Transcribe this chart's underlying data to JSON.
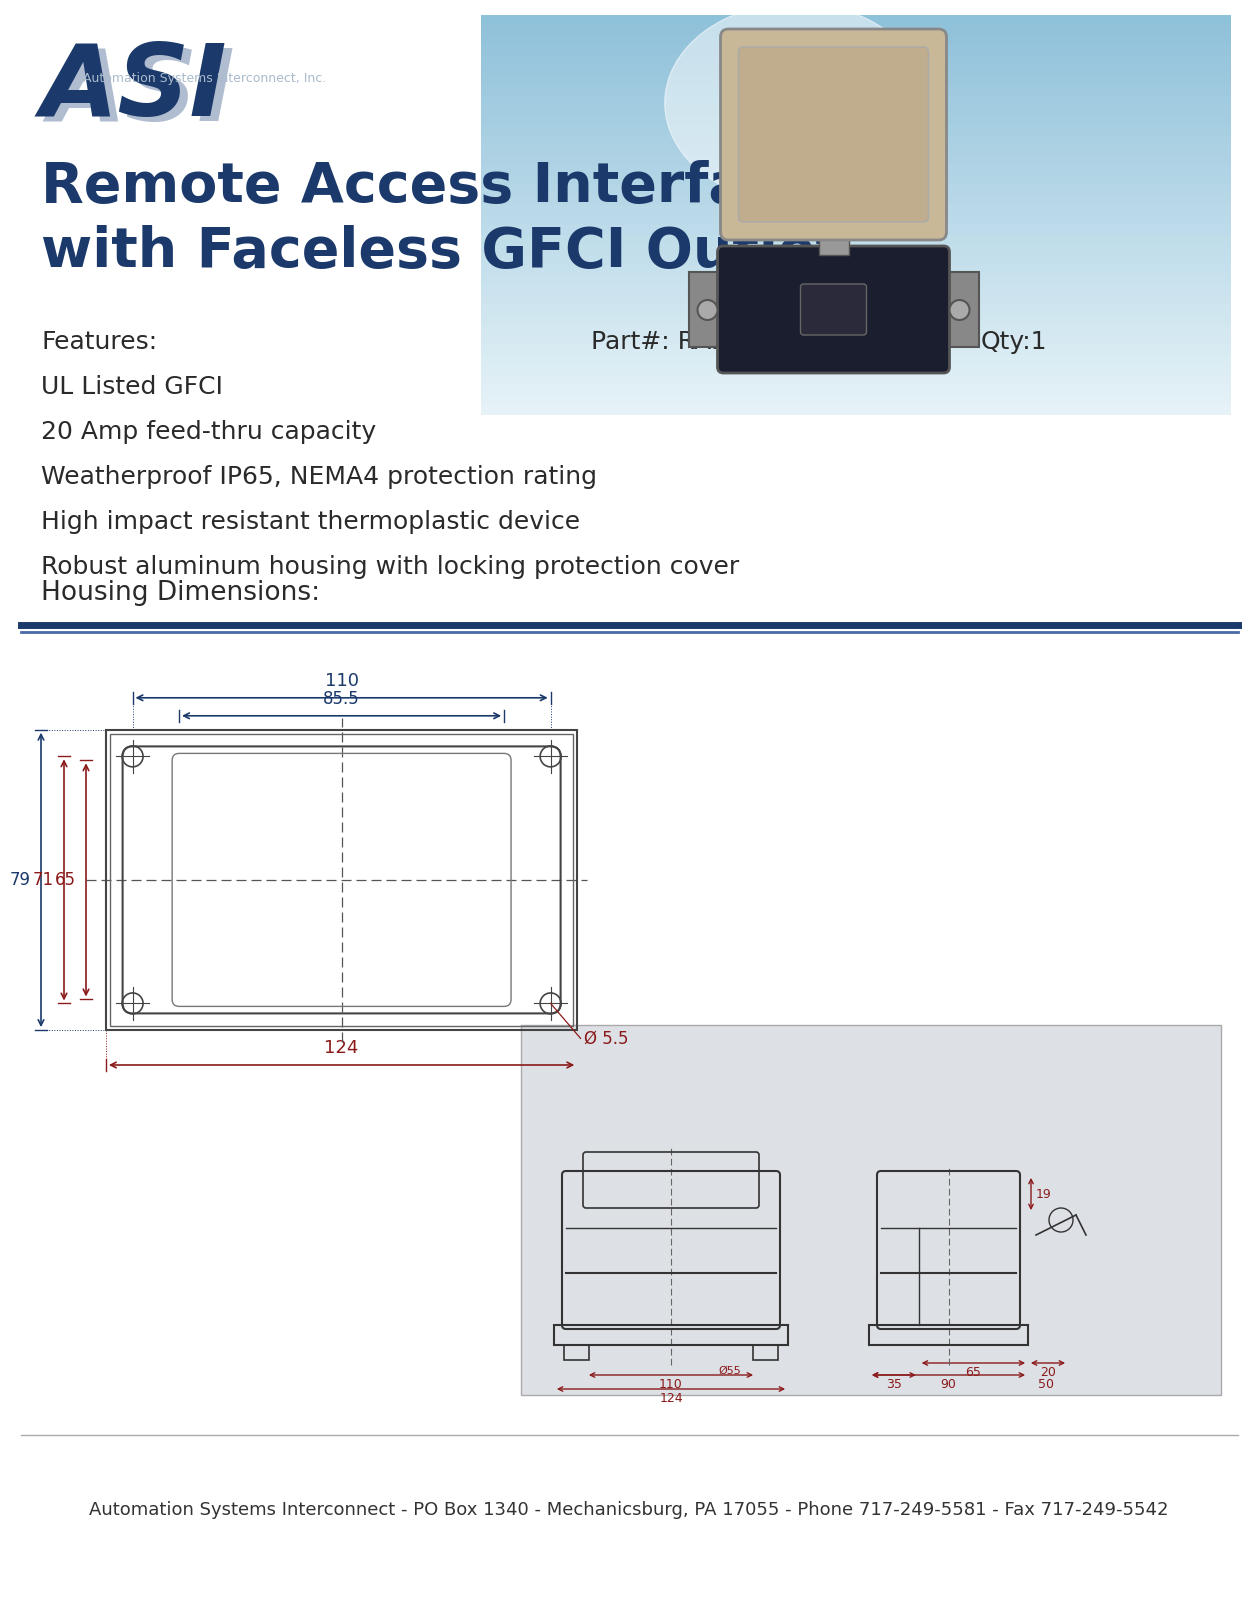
{
  "title_line1": "Remote Access Interface",
  "title_line2": "with Faceless GFCI Outlet",
  "company_name": "Automation Systems Interconnect, Inc.",
  "features_label": "Features:",
  "features": [
    "UL Listed GFCI",
    "20 Amp feed-thru capacity",
    "Weatherproof IP65, NEMA4 protection rating",
    "High impact resistant thermoplastic device",
    "Robust aluminum housing with locking protection cover"
  ],
  "part_number": "Part#: RAI-GFCI-203",
  "qty": "Qty:1",
  "housing_dimensions": "Housing Dimensions:",
  "footer": "Automation Systems Interconnect - PO Box 1340 - Mechanicsburg, PA 17055 - Phone 717-249-5581 - Fax 717-249-5542",
  "dim_110": "110",
  "dim_85_5": "85.5",
  "dim_124": "124",
  "dim_5_5": "Ø 5.5",
  "dim_79": "79",
  "dim_71": "71",
  "dim_65": "65",
  "blue_color": "#1B3A6B",
  "dim_red_color": "#8B1A1A",
  "dim_blue_color": "#1B3A6B",
  "text_color": "#2a2a2a",
  "bg_color": "#ffffff",
  "separator_color1": "#1B3A6B",
  "separator_color2": "#4a6aaa",
  "side_drawing_bg": "#dde0e5",
  "footer_text_color": "#333333",
  "line_color": "#444444"
}
